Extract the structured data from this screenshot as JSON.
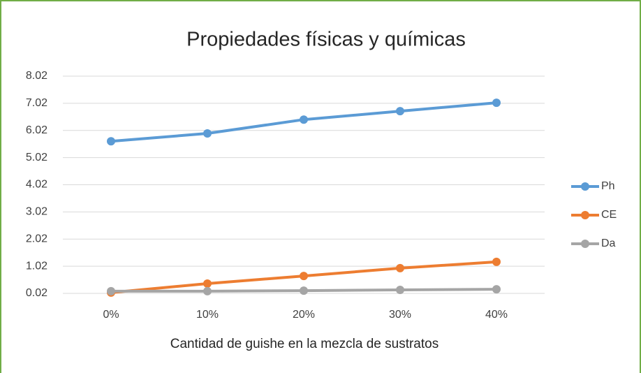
{
  "chart_data": {
    "type": "line",
    "title": "Propiedades físicas y químicas",
    "x_label": "Cantidad de guishe en la mezcla de sustratos",
    "categories": [
      "0%",
      "10%",
      "20%",
      "30%",
      "40%"
    ],
    "series": [
      {
        "name": "Ph",
        "color": "#5b9bd5",
        "values": [
          5.62,
          5.91,
          6.42,
          6.73,
          7.04
        ]
      },
      {
        "name": "CE",
        "color": "#ed7d31",
        "values": [
          0.05,
          0.38,
          0.66,
          0.95,
          1.18
        ]
      },
      {
        "name": "Da",
        "color": "#a5a5a5",
        "values": [
          0.1,
          0.1,
          0.12,
          0.15,
          0.17
        ]
      }
    ],
    "ylim": [
      0.02,
      8.02
    ],
    "yticks": [
      0.02,
      1.02,
      2.02,
      3.02,
      4.02,
      5.02,
      6.02,
      7.02,
      8.02
    ],
    "grid": true,
    "legend": "right"
  }
}
